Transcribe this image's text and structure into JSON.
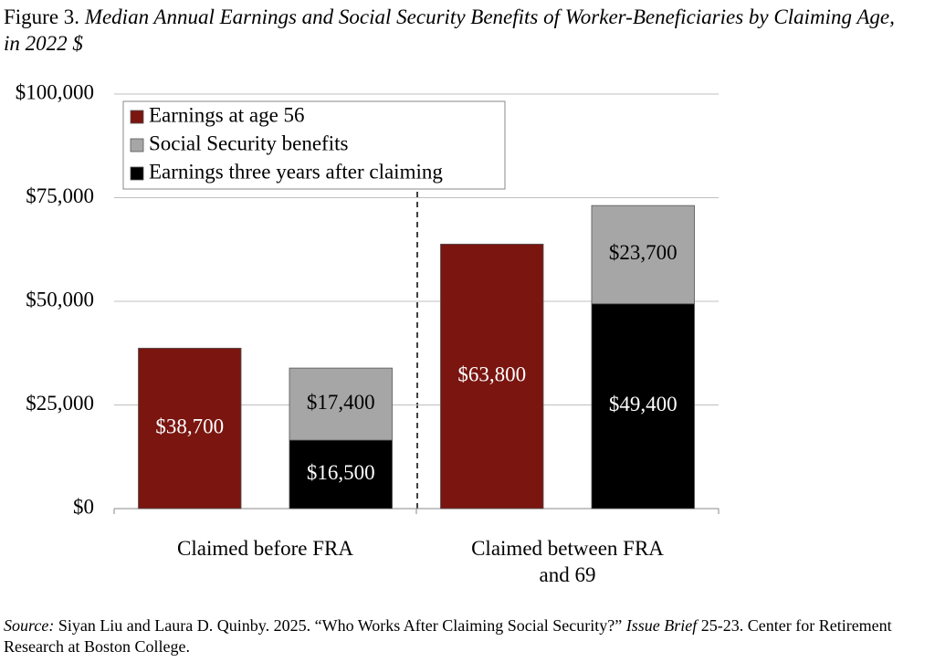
{
  "chart_data": {
    "type": "bar",
    "title_prefix": "Figure 3.",
    "title": "Median Annual Earnings and Social Security Benefits of Worker-Beneficiaries by Claiming Age, in 2022 $",
    "categories": [
      "Claimed before FRA",
      "Claimed between FRA and 69"
    ],
    "series": [
      {
        "name": "Earnings at age 56",
        "color": "#7a1510",
        "stack": 0,
        "values": [
          38700,
          63800
        ],
        "value_labels": [
          "$38,700",
          "$63,800"
        ]
      },
      {
        "name": "Social Security benefits",
        "color": "#a6a6a6",
        "stack": 1,
        "values": [
          17400,
          23700
        ],
        "value_labels": [
          "$17,400",
          "$23,700"
        ]
      },
      {
        "name": "Earnings three years after claiming",
        "color": "#000000",
        "stack": 1,
        "values": [
          16500,
          49400
        ],
        "value_labels": [
          "$16,500",
          "$49,400"
        ]
      }
    ],
    "ylim": [
      0,
      100000
    ],
    "yticks": [
      {
        "value": 0,
        "label": "$0"
      },
      {
        "value": 25000,
        "label": "$25,000"
      },
      {
        "value": 50000,
        "label": "$50,000"
      },
      {
        "value": 75000,
        "label": "$75,000"
      },
      {
        "value": 100000,
        "label": "$100,000"
      }
    ],
    "grid": true,
    "legend": "upper-left",
    "source": [
      "Source:",
      " Siyan Liu and Laura D. Quinby. 2025. “Who Works After Claiming Social Security?” ",
      "Issue Brief",
      " 25-23. Center for Retirement Research at Boston College."
    ]
  }
}
